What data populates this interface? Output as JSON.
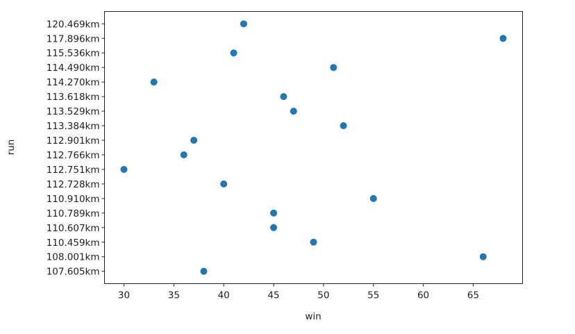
{
  "chart_data": {
    "type": "scatter",
    "title": "",
    "xlabel": "win",
    "ylabel": "run",
    "xlim": [
      28.05,
      69.95
    ],
    "xticks": [
      30,
      35,
      40,
      45,
      50,
      55,
      60,
      65
    ],
    "y_categories": [
      "107.605km",
      "108.001km",
      "110.459km",
      "110.607km",
      "110.789km",
      "110.910km",
      "112.728km",
      "112.751km",
      "112.766km",
      "112.901km",
      "113.384km",
      "113.529km",
      "113.618km",
      "114.270km",
      "114.490km",
      "115.536km",
      "117.896km",
      "120.469km"
    ],
    "grid": false,
    "marker_color": "#1f77b4",
    "points": [
      {
        "x": 42,
        "y": "120.469km"
      },
      {
        "x": 68,
        "y": "117.896km"
      },
      {
        "x": 41,
        "y": "115.536km"
      },
      {
        "x": 51,
        "y": "114.490km"
      },
      {
        "x": 33,
        "y": "114.270km"
      },
      {
        "x": 46,
        "y": "113.618km"
      },
      {
        "x": 47,
        "y": "113.529km"
      },
      {
        "x": 52,
        "y": "113.384km"
      },
      {
        "x": 37,
        "y": "112.901km"
      },
      {
        "x": 36,
        "y": "112.766km"
      },
      {
        "x": 30,
        "y": "112.751km"
      },
      {
        "x": 40,
        "y": "112.728km"
      },
      {
        "x": 55,
        "y": "110.910km"
      },
      {
        "x": 45,
        "y": "110.789km"
      },
      {
        "x": 45,
        "y": "110.607km"
      },
      {
        "x": 49,
        "y": "110.459km"
      },
      {
        "x": 66,
        "y": "108.001km"
      },
      {
        "x": 38,
        "y": "107.605km"
      }
    ]
  }
}
